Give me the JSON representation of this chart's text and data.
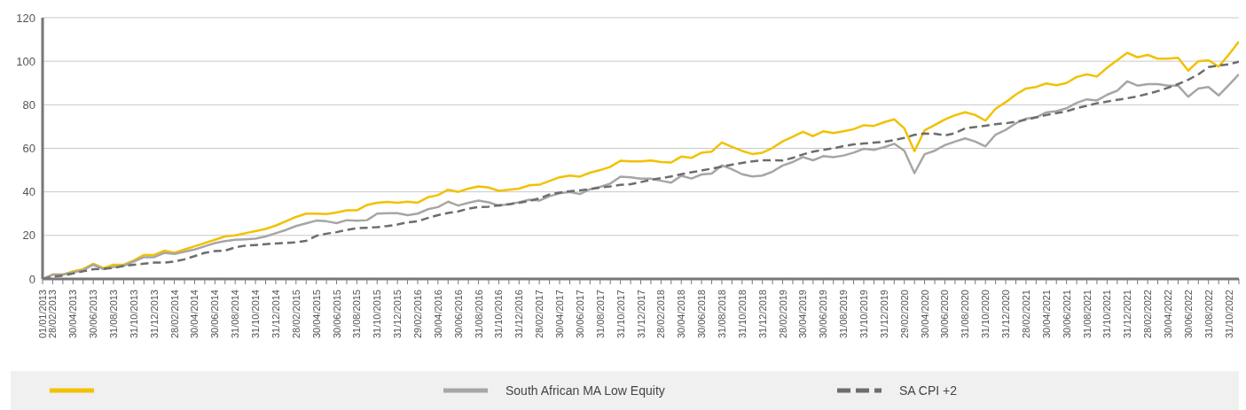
{
  "chart_data": {
    "type": "line",
    "categories": [
      "01/01/2013",
      "28/02/2013",
      null,
      "30/04/2013",
      null,
      "30/06/2013",
      null,
      "31/08/2013",
      null,
      "31/10/2013",
      null,
      "31/12/2013",
      null,
      "28/02/2014",
      null,
      "30/04/2014",
      null,
      "30/06/2014",
      null,
      "31/08/2014",
      null,
      "31/10/2014",
      null,
      "31/12/2014",
      null,
      "28/02/2015",
      null,
      "30/04/2015",
      null,
      "30/06/2015",
      null,
      "31/08/2015",
      null,
      "31/10/2015",
      null,
      "31/12/2015",
      null,
      "29/02/2016",
      null,
      "30/04/2016",
      null,
      "30/06/2016",
      null,
      "31/08/2016",
      null,
      "31/10/2016",
      null,
      "31/12/2016",
      null,
      "28/02/2017",
      null,
      "30/04/2017",
      null,
      "30/06/2017",
      null,
      "31/08/2017",
      null,
      "31/10/2017",
      null,
      "31/12/2017",
      null,
      "28/02/2018",
      null,
      "30/04/2018",
      null,
      "30/06/2018",
      null,
      "31/08/2018",
      null,
      "31/10/2018",
      null,
      "31/12/2018",
      null,
      "28/02/2019",
      null,
      "30/04/2019",
      null,
      "30/06/2019",
      null,
      "31/08/2019",
      null,
      "31/10/2019",
      null,
      "31/12/2019",
      null,
      "29/02/2020",
      null,
      "30/04/2020",
      null,
      "30/06/2020",
      null,
      "31/08/2020",
      null,
      "31/10/2020",
      null,
      "31/12/2020",
      null,
      "28/02/2021",
      null,
      "30/04/2021",
      null,
      "30/06/2021",
      null,
      "31/08/2021",
      null,
      "31/10/2021",
      null,
      "31/12/2021",
      null,
      "28/02/2022",
      null,
      "30/04/2022",
      null,
      "30/06/2022",
      null,
      "31/08/2022",
      null,
      "31/10/2022",
      null
    ],
    "series": [
      {
        "color": "#f2c100",
        "line_style": "solid",
        "values": [
          0,
          2,
          2,
          3.5,
          4.5,
          7,
          5,
          6.5,
          6.5,
          8.5,
          11,
          11,
          13,
          12,
          13.5,
          15,
          16.5,
          18,
          19.5,
          20,
          21,
          22,
          23,
          24.5,
          26.5,
          28.5,
          30,
          30,
          29.8,
          30.5,
          31.5,
          31.5,
          34,
          35,
          35.4,
          35,
          35.5,
          35,
          37.5,
          38.5,
          41,
          40,
          41.5,
          42.5,
          42,
          40.5,
          41,
          41.5,
          43,
          43.3,
          45,
          46.7,
          47.5,
          47,
          48.8,
          50,
          51.5,
          54.3,
          54,
          54,
          54.4,
          53.7,
          53.5,
          56.2,
          55.6,
          58,
          58.5,
          62.7,
          60.7,
          58.8,
          57.4,
          58,
          60.2,
          63.2,
          65.3,
          67.6,
          65.6,
          67.8,
          67,
          67.8,
          68.8,
          70.6,
          70.3,
          72,
          73.3,
          69.2,
          58.7,
          68.3,
          70.7,
          73.3,
          75.2,
          76.6,
          75.3,
          72.7,
          78.2,
          81.2,
          84.7,
          87.5,
          88.2,
          89.8,
          89,
          90,
          92.8,
          94,
          93,
          97,
          100.5,
          103.9,
          101.8,
          102.9,
          101.2,
          101.2,
          101.6,
          95.7,
          100,
          100.5,
          97.5,
          103,
          109
        ]
      },
      {
        "name": "South African MA Low Equity",
        "color": "#a8a5a5",
        "line_style": "solid",
        "values": [
          0,
          2,
          2,
          3,
          4,
          6.5,
          4.5,
          5.5,
          6,
          8,
          10,
          10,
          12,
          11.5,
          12.5,
          13.5,
          15,
          16.5,
          17.4,
          18,
          18.2,
          18.5,
          19.5,
          21,
          22.5,
          24.3,
          25.5,
          26.8,
          26.5,
          25.6,
          27,
          26.7,
          27,
          30,
          30.2,
          30.2,
          29.3,
          30,
          32,
          33,
          35.5,
          33.7,
          35,
          36,
          35.2,
          33.7,
          34.4,
          35.2,
          36.4,
          36,
          38,
          39.3,
          40,
          39,
          41.2,
          42.3,
          43.8,
          47,
          46.7,
          46.1,
          46.1,
          45.1,
          44.2,
          47.4,
          46.1,
          48,
          48.4,
          52.2,
          50.4,
          48.1,
          47.1,
          47.5,
          49.3,
          52.1,
          53.7,
          56,
          54.5,
          56.4,
          55.9,
          56.7,
          58,
          59.8,
          59.3,
          60.5,
          62.1,
          58.9,
          48.6,
          57.3,
          58.9,
          61.5,
          63.1,
          64.6,
          63.1,
          60.9,
          66.3,
          68.5,
          71.5,
          73.6,
          74.2,
          76.5,
          77.1,
          78.4,
          80.9,
          82.5,
          82,
          84.6,
          86.5,
          90.8,
          88.8,
          89.5,
          89.5,
          88.8,
          88.8,
          83.7,
          87.5,
          88.2,
          84.3,
          89,
          94
        ]
      },
      {
        "name": "SA CPI +2",
        "color": "#6d6d6d",
        "line_style": "dashed",
        "values": [
          0,
          1,
          1.5,
          2.5,
          3.5,
          4.5,
          4.7,
          5,
          6,
          6.5,
          7,
          7.5,
          7.5,
          8,
          9,
          10.5,
          12,
          12.8,
          13,
          14.5,
          15.3,
          15.6,
          16,
          16.3,
          16.5,
          16.8,
          17.5,
          19.8,
          20.8,
          21.5,
          22.5,
          23.3,
          23.5,
          23.8,
          24.3,
          25,
          26,
          26.5,
          28,
          29.3,
          30.3,
          31,
          32.3,
          33,
          33.2,
          33.8,
          34.3,
          35,
          35.8,
          37,
          38.8,
          39.7,
          40.3,
          40.7,
          41.3,
          42,
          42.5,
          43.2,
          43.5,
          44.5,
          45.5,
          46.3,
          47.1,
          48.1,
          49,
          49.8,
          50.7,
          51.6,
          52.5,
          53.3,
          54,
          54.5,
          54.5,
          54.4,
          55.6,
          57.2,
          58.5,
          59.3,
          60,
          61,
          61.8,
          62.2,
          62.6,
          63,
          63.8,
          64.8,
          66.2,
          66.8,
          66.7,
          65.9,
          67,
          69.2,
          69.8,
          70.4,
          71.1,
          71.5,
          72.2,
          73.2,
          74.2,
          75.3,
          76.2,
          77,
          78.5,
          79.5,
          80.7,
          81.5,
          82.3,
          83,
          83.9,
          85,
          86.3,
          87.8,
          89.5,
          91.5,
          94,
          97.3,
          98,
          98.6,
          99.8
        ]
      }
    ],
    "ylim": [
      0,
      120
    ],
    "yticks": [
      0,
      20,
      40,
      60,
      80,
      100,
      120
    ],
    "grid": "y",
    "legend": "bottom"
  }
}
